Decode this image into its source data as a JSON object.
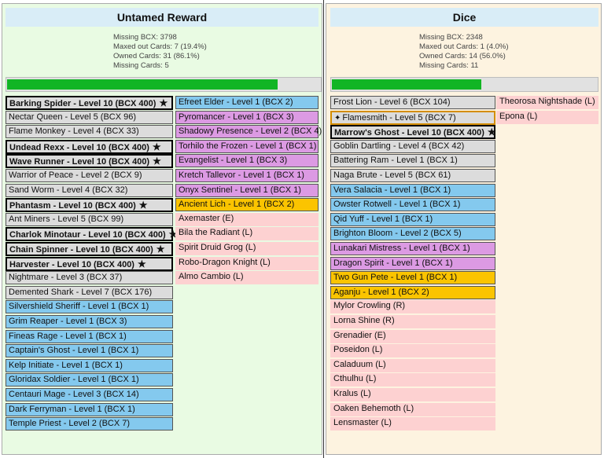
{
  "left": {
    "title": "Untamed Reward",
    "stats": [
      "Missing BCX: 3798",
      "Maxed out Cards: 7 (19.4%)",
      "Owned Cards: 31 (86.1%)",
      "Missing Cards: 5"
    ],
    "progress": 0.861,
    "col1": [
      {
        "text": "Barking Spider - Level 10 (BCX 400)",
        "type": "bold",
        "star": true
      },
      {
        "text": "Nectar Queen - Level 5 (BCX 96)",
        "type": "gray"
      },
      {
        "text": "Flame Monkey - Level 4 (BCX 33)",
        "type": "gray"
      },
      {
        "text": "Undead Rexx - Level 10 (BCX 400)",
        "type": "bold",
        "star": true
      },
      {
        "text": "Wave Runner - Level 10 (BCX 400)",
        "type": "bold",
        "star": true
      },
      {
        "text": "Warrior of Peace - Level 2 (BCX 9)",
        "type": "gray"
      },
      {
        "text": "Sand Worm - Level 4 (BCX 32)",
        "type": "gray"
      },
      {
        "text": "Phantasm - Level 10 (BCX 400)",
        "type": "bold",
        "star": true
      },
      {
        "text": "Ant Miners - Level 5 (BCX 99)",
        "type": "gray"
      },
      {
        "text": "Charlok Minotaur - Level 10 (BCX 400)",
        "type": "bold",
        "star": true
      },
      {
        "text": "Chain Spinner - Level 10 (BCX 400)",
        "type": "bold",
        "star": true
      },
      {
        "text": "Harvester - Level 10 (BCX 400)",
        "type": "bold",
        "star": true
      },
      {
        "text": "Nightmare - Level 3 (BCX 37)",
        "type": "gray"
      },
      {
        "text": "Demented Shark - Level 7 (BCX 176)",
        "type": "gray"
      },
      {
        "text": "Silvershield Sheriff - Level 1 (BCX 1)",
        "type": "blue"
      },
      {
        "text": "Grim Reaper - Level 1 (BCX 3)",
        "type": "blue"
      },
      {
        "text": "Fineas Rage - Level 1 (BCX 1)",
        "type": "blue"
      },
      {
        "text": "Captain's Ghost - Level 1 (BCX 1)",
        "type": "blue"
      },
      {
        "text": "Kelp Initiate - Level 1 (BCX 1)",
        "type": "blue"
      },
      {
        "text": "Gloridax Soldier - Level 1 (BCX 1)",
        "type": "blue"
      },
      {
        "text": "Centauri Mage - Level 3 (BCX 14)",
        "type": "blue"
      },
      {
        "text": "Dark Ferryman - Level 1 (BCX 1)",
        "type": "blue"
      },
      {
        "text": "Temple Priest - Level 2 (BCX 7)",
        "type": "blue"
      }
    ],
    "col2": [
      {
        "text": "Efreet Elder - Level 1 (BCX 2)",
        "type": "blue"
      },
      {
        "text": "Pyromancer - Level 1 (BCX 3)",
        "type": "purple"
      },
      {
        "text": "Shadowy Presence - Level 2 (BCX 4)",
        "type": "purple"
      },
      {
        "text": "Torhilo the Frozen - Level 1 (BCX 1)",
        "type": "purple"
      },
      {
        "text": "Evangelist - Level 1 (BCX 3)",
        "type": "purple"
      },
      {
        "text": "Kretch Tallevor - Level 1 (BCX 1)",
        "type": "purple"
      },
      {
        "text": "Onyx Sentinel - Level 1 (BCX 1)",
        "type": "purple"
      },
      {
        "text": "Ancient Lich - Level 1 (BCX 2)",
        "type": "gold"
      },
      {
        "text": "Axemaster (E)",
        "type": "pink"
      },
      {
        "text": "Bila the Radiant (L)",
        "type": "pink"
      },
      {
        "text": "Spirit Druid Grog (L)",
        "type": "pink"
      },
      {
        "text": "Robo-Dragon Knight (L)",
        "type": "pink"
      },
      {
        "text": "Almo Cambio (L)",
        "type": "pink"
      }
    ]
  },
  "right": {
    "title": "Dice",
    "stats": [
      "Missing BCX: 2348",
      "Maxed out Cards: 1 (4.0%)",
      "Owned Cards: 14 (56.0%)",
      "Missing Cards: 11"
    ],
    "progress": 0.56,
    "col1": [
      {
        "text": "Frost Lion - Level 6 (BCX 104)",
        "type": "gray"
      },
      {
        "text": "Flamesmith - Level 5 (BCX 7)",
        "type": "orange",
        "spark": true
      },
      {
        "text": "Marrow's Ghost - Level 10 (BCX 400)",
        "type": "bold",
        "star": true
      },
      {
        "text": "Goblin Dartling - Level 4 (BCX 42)",
        "type": "gray"
      },
      {
        "text": "Battering Ram - Level 1 (BCX 1)",
        "type": "gray"
      },
      {
        "text": "Naga Brute - Level 5 (BCX 61)",
        "type": "gray"
      },
      {
        "text": "Vera Salacia - Level 1 (BCX 1)",
        "type": "blue"
      },
      {
        "text": "Owster Rotwell - Level 1 (BCX 1)",
        "type": "blue"
      },
      {
        "text": "Qid Yuff - Level 1 (BCX 1)",
        "type": "blue"
      },
      {
        "text": "Brighton Bloom - Level 2 (BCX 5)",
        "type": "blue"
      },
      {
        "text": "Lunakari Mistress - Level 1 (BCX 1)",
        "type": "purple"
      },
      {
        "text": "Dragon Spirit - Level 1 (BCX 1)",
        "type": "purple"
      },
      {
        "text": "Two Gun Pete - Level 1 (BCX 1)",
        "type": "gold"
      },
      {
        "text": "Aganju - Level 1 (BCX 2)",
        "type": "gold"
      },
      {
        "text": "Mylor Crowling (R)",
        "type": "pink"
      },
      {
        "text": "Lorna Shine (R)",
        "type": "pink"
      },
      {
        "text": "Grenadier (E)",
        "type": "pink"
      },
      {
        "text": "Poseidon (L)",
        "type": "pink"
      },
      {
        "text": "Caladuum (L)",
        "type": "pink"
      },
      {
        "text": "Cthulhu (L)",
        "type": "pink"
      },
      {
        "text": "Kralus (L)",
        "type": "pink"
      },
      {
        "text": "Oaken Behemoth (L)",
        "type": "pink"
      },
      {
        "text": "Lensmaster (L)",
        "type": "pink"
      }
    ],
    "col2": [
      {
        "text": "Theorosa Nightshade (L)",
        "type": "pink"
      },
      {
        "text": "Epona (L)",
        "type": "pink"
      }
    ]
  },
  "icons": {
    "star": "★",
    "spark": "✦"
  }
}
